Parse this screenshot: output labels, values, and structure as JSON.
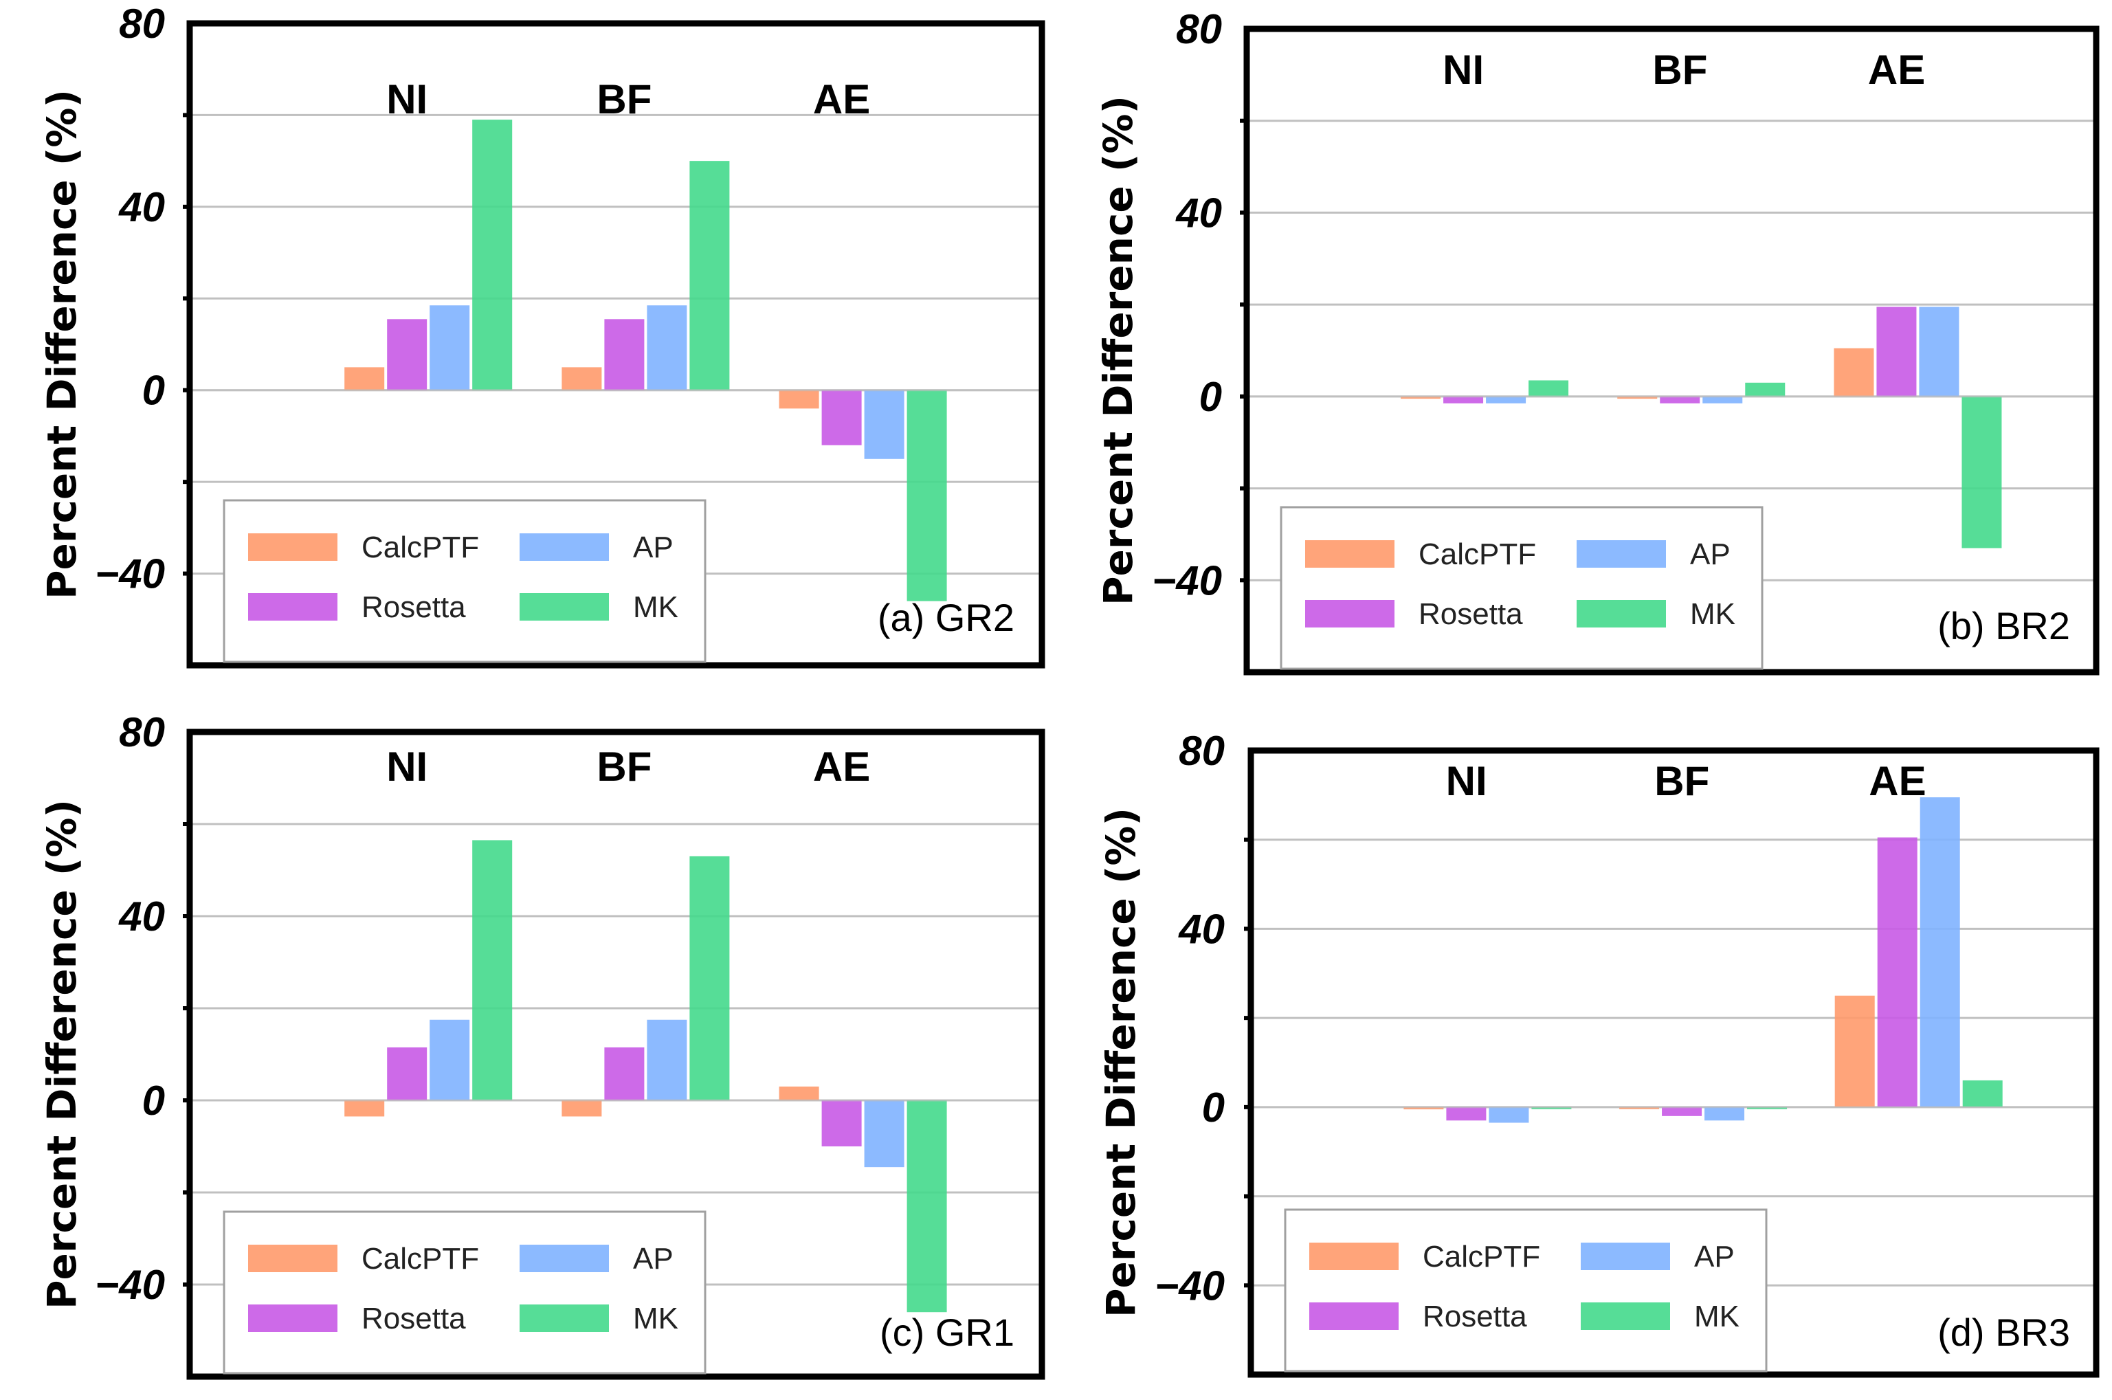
{
  "colors": {
    "CalcPTF": "#ff9a6b",
    "Rosetta": "#c85ae6",
    "AP": "#7fb2ff",
    "MK": "#44d98c",
    "grid": "#c0c0c0",
    "frame": "#000000"
  },
  "chart_data": [
    {
      "type": "bar",
      "panel_label": "(a) GR2",
      "ylabel": "Percent Difference (%)",
      "ylim": [
        -60,
        80
      ],
      "yticks": [
        80,
        40,
        0,
        -40
      ],
      "ytick_labels": [
        "80",
        "40",
        "0",
        "−40"
      ],
      "groups": [
        "NI",
        "BF",
        "AE"
      ],
      "series": [
        {
          "name": "CalcPTF",
          "values": [
            5,
            5,
            -4
          ]
        },
        {
          "name": "Rosetta",
          "values": [
            15.5,
            15.5,
            -12
          ]
        },
        {
          "name": "AP",
          "values": [
            18.5,
            18.5,
            -15
          ]
        },
        {
          "name": "MK",
          "values": [
            59,
            50,
            -46
          ]
        }
      ],
      "legend": [
        "CalcPTF",
        "AP",
        "Rosetta",
        "MK"
      ]
    },
    {
      "type": "bar",
      "panel_label": "(b) BR2",
      "ylabel": "Percent Difference (%)",
      "ylim": [
        -60,
        80
      ],
      "yticks": [
        80,
        40,
        0,
        -40
      ],
      "ytick_labels": [
        "80",
        "40",
        "0",
        "−40"
      ],
      "groups": [
        "NI",
        "BF",
        "AE"
      ],
      "series": [
        {
          "name": "CalcPTF",
          "values": [
            -0.5,
            -0.5,
            10.5
          ]
        },
        {
          "name": "Rosetta",
          "values": [
            -1.5,
            -1.5,
            19.5
          ]
        },
        {
          "name": "AP",
          "values": [
            -1.5,
            -1.5,
            19.5
          ]
        },
        {
          "name": "MK",
          "values": [
            3.5,
            3,
            -33
          ]
        }
      ],
      "legend": [
        "CalcPTF",
        "AP",
        "Rosetta",
        "MK"
      ]
    },
    {
      "type": "bar",
      "panel_label": "(c) GR1",
      "ylabel": "Percent Difference (%)",
      "ylim": [
        -60,
        80
      ],
      "yticks": [
        80,
        40,
        0,
        -40
      ],
      "ytick_labels": [
        "80",
        "40",
        "0",
        "−40"
      ],
      "groups": [
        "NI",
        "BF",
        "AE"
      ],
      "series": [
        {
          "name": "CalcPTF",
          "values": [
            -3.5,
            -3.5,
            3
          ]
        },
        {
          "name": "Rosetta",
          "values": [
            11.5,
            11.5,
            -10
          ]
        },
        {
          "name": "AP",
          "values": [
            17.5,
            17.5,
            -14.5
          ]
        },
        {
          "name": "MK",
          "values": [
            56.5,
            53,
            -46
          ]
        }
      ],
      "legend": [
        "CalcPTF",
        "AP",
        "Rosetta",
        "MK"
      ]
    },
    {
      "type": "bar",
      "panel_label": "(d) BR3",
      "ylabel": "Percent Difference (%)",
      "ylim": [
        -60,
        80
      ],
      "yticks": [
        80,
        40,
        0,
        -40
      ],
      "ytick_labels": [
        "80",
        "40",
        "0",
        "−40"
      ],
      "groups": [
        "NI",
        "BF",
        "AE"
      ],
      "series": [
        {
          "name": "CalcPTF",
          "values": [
            -0.5,
            0,
            25
          ]
        },
        {
          "name": "Rosetta",
          "values": [
            -3,
            -2,
            60.5
          ]
        },
        {
          "name": "AP",
          "values": [
            -3.5,
            -3,
            69.5
          ]
        },
        {
          "name": "MK",
          "values": [
            0,
            0,
            6
          ]
        }
      ],
      "legend": [
        "CalcPTF",
        "AP",
        "Rosetta",
        "MK"
      ]
    }
  ]
}
